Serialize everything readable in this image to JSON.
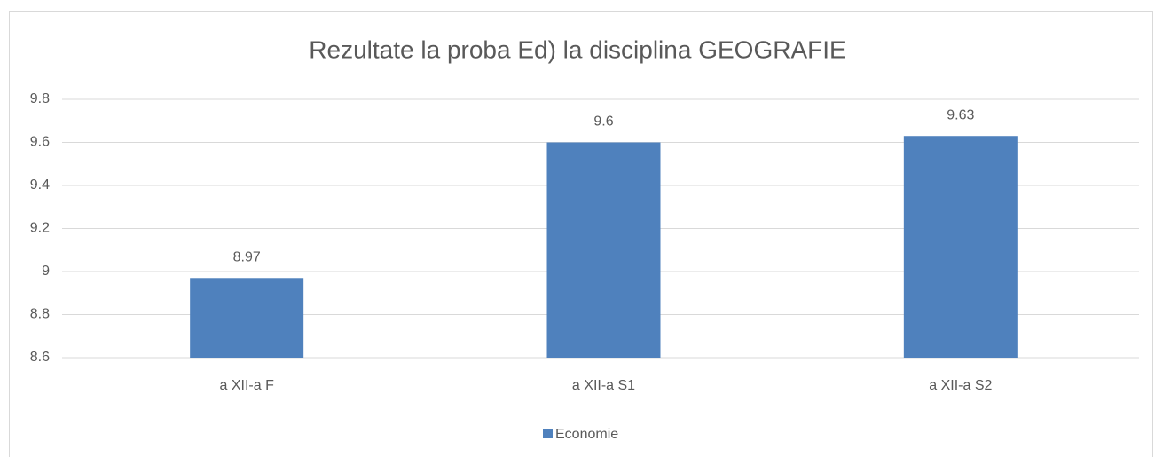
{
  "chart_data": {
    "type": "bar",
    "title": "Rezultate la proba Ed) la disciplina GEOGRAFIE",
    "categories": [
      "a XII-a F",
      "a XII-a S1",
      "a XII-a S2"
    ],
    "series": [
      {
        "name": "Economie",
        "color": "#4f81bd",
        "values": [
          8.97,
          9.6,
          9.63
        ]
      }
    ],
    "ylim": [
      8.6,
      9.8
    ],
    "yticks": [
      8.6,
      8.8,
      9,
      9.2,
      9.4,
      9.6,
      9.8
    ],
    "grid": true,
    "legend": "bottom"
  }
}
